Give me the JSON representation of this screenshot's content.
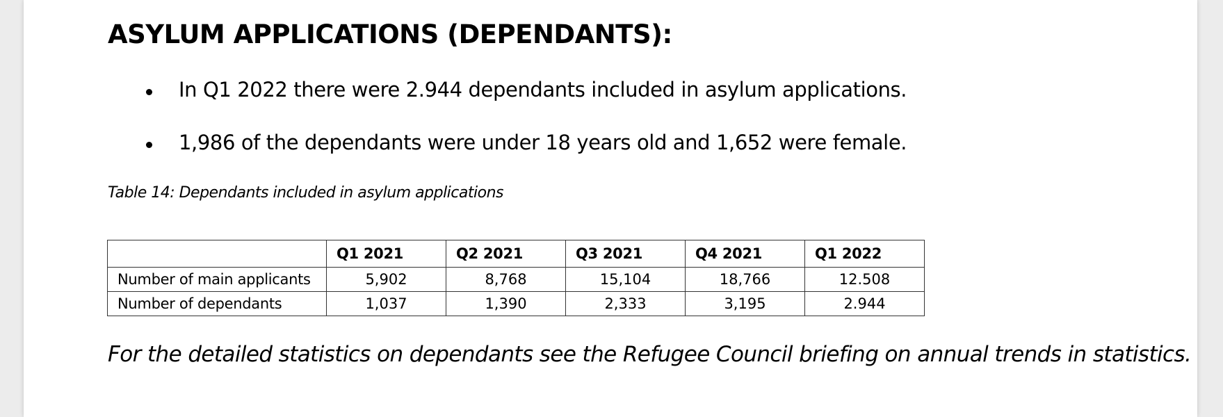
{
  "heading": "ASYLUM APPLICATIONS (DEPENDANTS):",
  "bullets": [
    "In Q1 2022 there were 2.944 dependants included in asylum applications.",
    "1,986 of the dependants were under 18 years old and 1,652 were female."
  ],
  "table": {
    "caption": "Table 14: Dependants included in asylum applications",
    "columns": [
      "Q1 2021",
      "Q2 2021",
      "Q3 2021",
      "Q4 2021",
      "Q1 2022"
    ],
    "rows": [
      {
        "label": "Number of main applicants",
        "values": [
          "5,902",
          "8,768",
          "15,104",
          "18,766",
          "12.508"
        ]
      },
      {
        "label": "Number of dependants",
        "values": [
          "1,037",
          "1,390",
          "2,333",
          "3,195",
          "2.944"
        ]
      }
    ]
  },
  "footnote": "For the detailed statistics on dependants see the Refugee Council briefing on annual trends in statistics."
}
